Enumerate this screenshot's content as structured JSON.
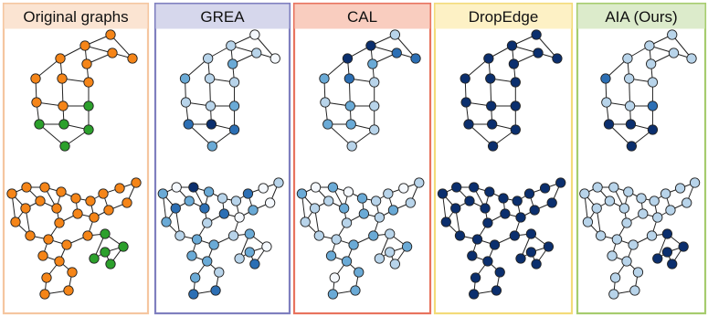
{
  "colors": {
    "orange": "#f58518",
    "green": "#2ca02c",
    "c0": "#f4f8fd",
    "c1": "#b8d4ea",
    "c2": "#6aaad6",
    "c3": "#2c6fb4",
    "c4": "#0b2f6e",
    "edge": "#222222",
    "node_stroke": "#222222"
  },
  "panels": [
    {
      "id": "original",
      "title": "Original graphs",
      "border_color": "#f5c6a0",
      "header_fill": "#fbe4d2",
      "top_colors": [
        "orange",
        "orange",
        "orange",
        "orange",
        "orange",
        "orange",
        "orange",
        "orange",
        "orange",
        "orange",
        "orange",
        "green",
        "green",
        "green",
        "green",
        "green"
      ],
      "bottom_colors": [
        "orange",
        "orange",
        "orange",
        "orange",
        "orange",
        "orange",
        "orange",
        "orange",
        "orange",
        "orange",
        "orange",
        "orange",
        "orange",
        "orange",
        "orange",
        "orange",
        "orange",
        "orange",
        "orange",
        "orange",
        "orange",
        "orange",
        "green",
        "green",
        "green",
        "green",
        "green",
        "orange",
        "orange",
        "orange",
        "orange",
        "orange",
        "orange"
      ]
    },
    {
      "id": "grea",
      "title": "GREA",
      "border_color": "#7f7fbf",
      "header_fill": "#d6d7ec",
      "top_colors": [
        "c0",
        "c1",
        "c1",
        "c1",
        "c2",
        "c0",
        "c2",
        "c1",
        "c1",
        "c1",
        "c1",
        "c2",
        "c3",
        "c4",
        "c3",
        "c2"
      ],
      "bottom_colors": [
        "c2",
        "c0",
        "c4",
        "c2",
        "c1",
        "c2",
        "c3",
        "c3",
        "c2",
        "c1",
        "c3",
        "c0",
        "c1",
        "c2",
        "c0",
        "c1",
        "c3",
        "c0",
        "c1",
        "c2",
        "c2",
        "c1",
        "c2",
        "c0",
        "c2",
        "c3",
        "c1",
        "c2",
        "c2",
        "c1",
        "c2",
        "c3",
        "c3"
      ]
    },
    {
      "id": "cal",
      "title": "CAL",
      "border_color": "#e8735e",
      "header_fill": "#f9cdbf",
      "top_colors": [
        "c1",
        "c4",
        "c3",
        "c4",
        "c2",
        "c3",
        "c2",
        "c3",
        "c1",
        "c1",
        "c2",
        "c1",
        "c2",
        "c2",
        "c1",
        "c1"
      ],
      "bottom_colors": [
        "c2",
        "c0",
        "c2",
        "c0",
        "c2",
        "c1",
        "c1",
        "c2",
        "c1",
        "c1",
        "c1",
        "c0",
        "c1",
        "c2",
        "c1",
        "c1",
        "c2",
        "c1",
        "c1",
        "c1",
        "c2",
        "c2",
        "c1",
        "c2",
        "c1",
        "c1",
        "c1",
        "c2",
        "c2",
        "c2",
        "c0",
        "c2",
        "c2"
      ]
    },
    {
      "id": "dropedge",
      "title": "DropEdge",
      "border_color": "#f3db79",
      "header_fill": "#fdf1c5",
      "top_colors": [
        "c4",
        "c4",
        "c4",
        "c4",
        "c4",
        "c4",
        "c4",
        "c4",
        "c4",
        "c4",
        "c4",
        "c4",
        "c4",
        "c4",
        "c4",
        "c4"
      ],
      "bottom_colors": [
        "c4",
        "c4",
        "c4",
        "c4",
        "c4",
        "c4",
        "c4",
        "c4",
        "c4",
        "c4",
        "c4",
        "c4",
        "c4",
        "c4",
        "c4",
        "c4",
        "c4",
        "c4",
        "c4",
        "c4",
        "c4",
        "c4",
        "c4",
        "c4",
        "c4",
        "c4",
        "c4",
        "c4",
        "c4",
        "c4",
        "c4",
        "c4",
        "c4"
      ]
    },
    {
      "id": "aia",
      "title": "AIA (Ours)",
      "border_color": "#a6cc6e",
      "header_fill": "#dcebcb",
      "top_colors": [
        "c1",
        "c1",
        "c1",
        "c1",
        "c1",
        "c1",
        "c3",
        "c1",
        "c1",
        "c1",
        "c1",
        "c3",
        "c4",
        "c4",
        "c4",
        "c4"
      ],
      "bottom_colors": [
        "c1",
        "c1",
        "c1",
        "c1",
        "c1",
        "c1",
        "c1",
        "c1",
        "c1",
        "c1",
        "c1",
        "c1",
        "c1",
        "c1",
        "c1",
        "c1",
        "c1",
        "c1",
        "c1",
        "c1",
        "c1",
        "c1",
        "c4",
        "c4",
        "c4",
        "c4",
        "c4",
        "c1",
        "c1",
        "c1",
        "c1",
        "c1",
        "c1"
      ]
    }
  ]
}
